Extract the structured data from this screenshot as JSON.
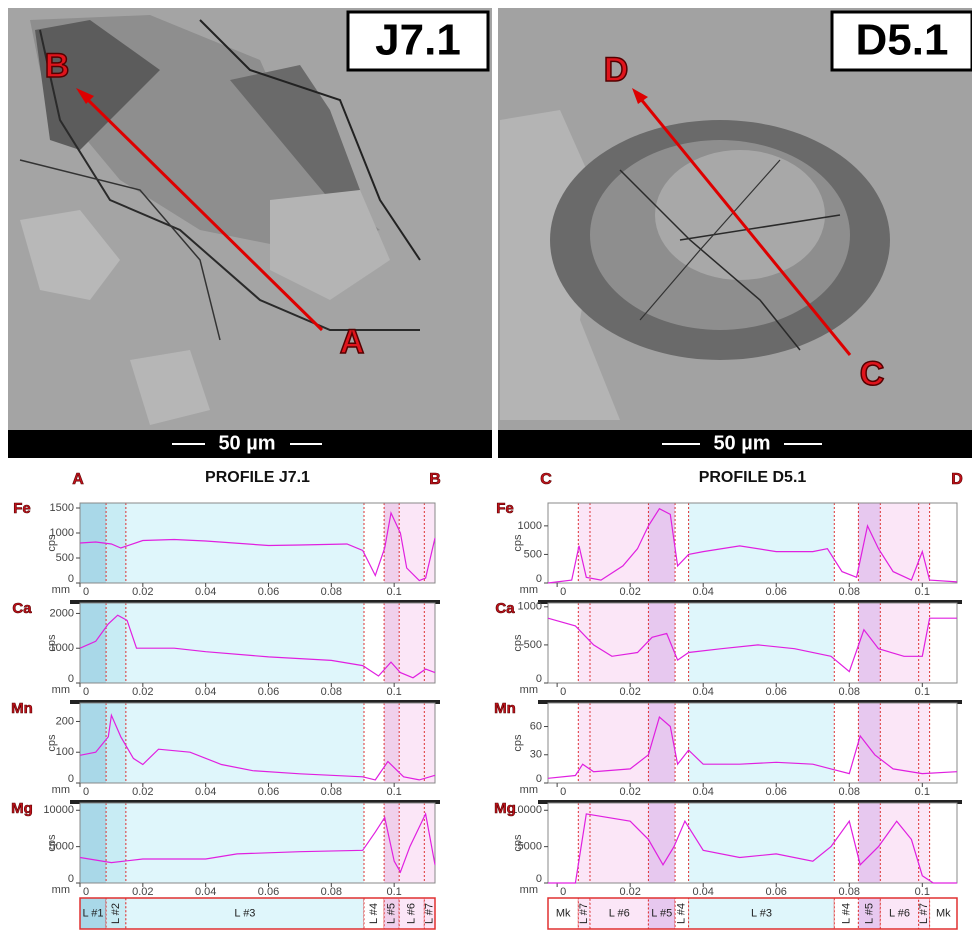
{
  "images": [
    {
      "label": "J7.1",
      "scale_bar": "50 µm",
      "start": "A",
      "end": "B"
    },
    {
      "label": "D5.1",
      "scale_bar": "50 µm",
      "start": "C",
      "end": "D"
    }
  ],
  "profiles": [
    {
      "title": "PROFILE J7.1",
      "start": "A",
      "end": "B",
      "zones": [
        {
          "label": "L #1",
          "from": 0,
          "to": 0.0083,
          "color": "#a9d8e8"
        },
        {
          "label": "L #2",
          "from": 0.0083,
          "to": 0.0146,
          "color": "#c8ecf4"
        },
        {
          "label": "L #3",
          "from": 0.0146,
          "to": 0.0904,
          "color": "#dff6fb"
        },
        {
          "label": "L #4",
          "from": 0.0904,
          "to": 0.0968,
          "color": "#ffffff"
        },
        {
          "label": "L #5",
          "from": 0.0968,
          "to": 0.1016,
          "color": "#f0d0ec"
        },
        {
          "label": "L #6",
          "from": 0.1016,
          "to": 0.1096,
          "color": "#fbe6f7"
        },
        {
          "label": "L #7",
          "from": 0.1096,
          "to": 0.113,
          "color": "#fbe6f7"
        }
      ]
    },
    {
      "title": "PROFILE D5.1",
      "start": "C",
      "end": "D",
      "zones": [
        {
          "label": "Mk",
          "from": -0.0025,
          "to": 0.0058,
          "color": "#ffffff"
        },
        {
          "label": "L #7",
          "from": 0.0058,
          "to": 0.009,
          "color": "#fbe6f7"
        },
        {
          "label": "L #6",
          "from": 0.009,
          "to": 0.025,
          "color": "#fbe6f7"
        },
        {
          "label": "L #5",
          "from": 0.025,
          "to": 0.0323,
          "color": "#e7c8ef"
        },
        {
          "label": "L #4",
          "from": 0.0323,
          "to": 0.036,
          "color": "#ffffff"
        },
        {
          "label": "L #3",
          "from": 0.036,
          "to": 0.0759,
          "color": "#dff6fb"
        },
        {
          "label": "L #4",
          "from": 0.0759,
          "to": 0.0825,
          "color": "#ffffff"
        },
        {
          "label": "L #5",
          "from": 0.0825,
          "to": 0.0885,
          "color": "#e7c8ef"
        },
        {
          "label": "L #6",
          "from": 0.0885,
          "to": 0.099,
          "color": "#fbe6f7"
        },
        {
          "label": "L #7",
          "from": 0.099,
          "to": 0.102,
          "color": "#fbe6f7"
        },
        {
          "label": "Mk",
          "from": 0.102,
          "to": 0.1095,
          "color": "#ffffff"
        }
      ]
    }
  ],
  "chart_data": [
    {
      "type": "line",
      "title": "Fe",
      "ylabel": "cps",
      "xlabel": "mm",
      "color": "#e020e0",
      "xlim": [
        0,
        0.113
      ],
      "xticks": [
        0,
        0.02,
        0.04,
        0.06,
        0.08,
        0.1
      ],
      "ylim": [
        0,
        1600
      ],
      "yticks": [
        0,
        500,
        1000,
        1500
      ],
      "x": [
        0,
        0.005,
        0.01,
        0.013,
        0.02,
        0.03,
        0.04,
        0.06,
        0.07,
        0.085,
        0.09,
        0.094,
        0.097,
        0.099,
        0.102,
        0.104,
        0.108,
        0.11,
        0.113
      ],
      "values": [
        800,
        820,
        780,
        700,
        850,
        870,
        840,
        750,
        760,
        780,
        650,
        150,
        700,
        1400,
        1000,
        300,
        50,
        100,
        900
      ]
    },
    {
      "type": "line",
      "title": "Ca",
      "ylabel": "cps",
      "xlabel": "mm",
      "color": "#e020e0",
      "xlim": [
        0,
        0.113
      ],
      "xticks": [
        0,
        0.02,
        0.04,
        0.06,
        0.08,
        0.1
      ],
      "ylim": [
        0,
        2300
      ],
      "yticks": [
        0,
        1000,
        2000
      ],
      "x": [
        0,
        0.005,
        0.009,
        0.012,
        0.015,
        0.018,
        0.03,
        0.04,
        0.06,
        0.08,
        0.09,
        0.095,
        0.099,
        0.102,
        0.106,
        0.11,
        0.113
      ],
      "values": [
        1000,
        1200,
        1700,
        1950,
        1800,
        1000,
        1000,
        900,
        750,
        650,
        500,
        200,
        600,
        300,
        150,
        400,
        300
      ]
    },
    {
      "type": "line",
      "title": "Mn",
      "ylabel": "cps",
      "xlabel": "mm",
      "color": "#e020e0",
      "xlim": [
        0,
        0.113
      ],
      "xticks": [
        0,
        0.02,
        0.04,
        0.06,
        0.08,
        0.1
      ],
      "ylim": [
        0,
        260
      ],
      "yticks": [
        0,
        100,
        200
      ],
      "x": [
        0,
        0.005,
        0.009,
        0.01,
        0.013,
        0.017,
        0.02,
        0.025,
        0.035,
        0.045,
        0.055,
        0.07,
        0.09,
        0.094,
        0.098,
        0.103,
        0.108,
        0.113
      ],
      "values": [
        90,
        100,
        150,
        220,
        150,
        80,
        60,
        110,
        100,
        60,
        40,
        30,
        20,
        10,
        70,
        20,
        10,
        25
      ]
    },
    {
      "type": "line",
      "title": "Mg",
      "ylabel": "cps",
      "xlabel": "mm",
      "color": "#e020e0",
      "xlim": [
        0,
        0.113
      ],
      "xticks": [
        0,
        0.02,
        0.04,
        0.06,
        0.08,
        0.1
      ],
      "ylim": [
        0,
        11000
      ],
      "yticks": [
        0,
        5000,
        10000
      ],
      "x": [
        0,
        0.01,
        0.02,
        0.04,
        0.05,
        0.07,
        0.09,
        0.094,
        0.097,
        0.1,
        0.102,
        0.105,
        0.11,
        0.113
      ],
      "values": [
        3500,
        2800,
        3300,
        3300,
        4000,
        4300,
        4500,
        7000,
        9000,
        3000,
        1500,
        5000,
        9500,
        2500
      ]
    },
    {
      "type": "line",
      "title": "Fe",
      "ylabel": "cps",
      "xlabel": "mm",
      "color": "#e020e0",
      "xlim": [
        -0.0025,
        0.1095
      ],
      "xticks": [
        0,
        0.02,
        0.04,
        0.06,
        0.08,
        0.1
      ],
      "ylim": [
        0,
        1400
      ],
      "yticks": [
        0,
        500,
        1000
      ],
      "x": [
        -0.0025,
        0.004,
        0.006,
        0.008,
        0.012,
        0.018,
        0.022,
        0.025,
        0.028,
        0.031,
        0.033,
        0.036,
        0.04,
        0.05,
        0.06,
        0.07,
        0.074,
        0.078,
        0.082,
        0.085,
        0.088,
        0.092,
        0.097,
        0.1,
        0.102,
        0.1095
      ],
      "values": [
        0,
        50,
        650,
        100,
        50,
        300,
        600,
        1000,
        1300,
        1200,
        300,
        500,
        550,
        650,
        550,
        550,
        600,
        200,
        100,
        1000,
        600,
        200,
        50,
        550,
        50,
        20
      ]
    },
    {
      "type": "line",
      "title": "Ca",
      "ylabel": "cps",
      "xlabel": "mm",
      "color": "#e020e0",
      "xlim": [
        -0.0025,
        0.1095
      ],
      "xticks": [
        0,
        0.02,
        0.04,
        0.06,
        0.08,
        0.1
      ],
      "ylim": [
        0,
        1050
      ],
      "yticks": [
        0,
        500,
        1000
      ],
      "x": [
        -0.0025,
        0.005,
        0.01,
        0.015,
        0.022,
        0.026,
        0.03,
        0.033,
        0.036,
        0.045,
        0.055,
        0.065,
        0.075,
        0.08,
        0.084,
        0.088,
        0.095,
        0.1,
        0.102,
        0.1095
      ],
      "values": [
        850,
        750,
        500,
        350,
        400,
        600,
        650,
        300,
        400,
        450,
        500,
        450,
        350,
        150,
        700,
        450,
        350,
        350,
        850,
        850
      ]
    },
    {
      "type": "line",
      "title": "Mn",
      "ylabel": "cps",
      "xlabel": "mm",
      "color": "#e020e0",
      "xlim": [
        -0.0025,
        0.1095
      ],
      "xticks": [
        0,
        0.02,
        0.04,
        0.06,
        0.08,
        0.1
      ],
      "ylim": [
        0,
        85
      ],
      "yticks": [
        0,
        30,
        60
      ],
      "x": [
        -0.0025,
        0.005,
        0.007,
        0.01,
        0.02,
        0.025,
        0.028,
        0.031,
        0.033,
        0.036,
        0.04,
        0.05,
        0.06,
        0.07,
        0.075,
        0.08,
        0.083,
        0.087,
        0.092,
        0.1,
        0.1095
      ],
      "values": [
        5,
        8,
        20,
        12,
        15,
        30,
        70,
        60,
        20,
        35,
        20,
        20,
        22,
        20,
        15,
        10,
        50,
        30,
        15,
        10,
        12
      ]
    },
    {
      "type": "line",
      "title": "Mg",
      "ylabel": "cps",
      "xlabel": "mm",
      "color": "#e020e0",
      "xlim": [
        -0.0025,
        0.1095
      ],
      "xticks": [
        0,
        0.02,
        0.04,
        0.06,
        0.08,
        0.1
      ],
      "ylim": [
        0,
        11000
      ],
      "yticks": [
        0,
        5000,
        10000
      ],
      "x": [
        -0.0025,
        0.005,
        0.008,
        0.02,
        0.025,
        0.029,
        0.032,
        0.035,
        0.04,
        0.05,
        0.06,
        0.07,
        0.075,
        0.08,
        0.083,
        0.088,
        0.093,
        0.097,
        0.1,
        0.103,
        0.1095
      ],
      "values": [
        0,
        0,
        9500,
        8500,
        6000,
        2500,
        5000,
        8500,
        4500,
        3500,
        4000,
        3000,
        5000,
        8500,
        2500,
        5000,
        8500,
        6000,
        1000,
        0,
        0
      ]
    }
  ]
}
